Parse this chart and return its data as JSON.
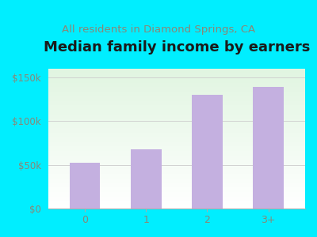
{
  "title": "Median family income by earners",
  "subtitle": "All residents in Diamond Springs, CA",
  "categories": [
    "0",
    "1",
    "2",
    "3+"
  ],
  "values": [
    52000,
    68000,
    130000,
    139000
  ],
  "bar_color": "#c4b0e0",
  "title_fontsize": 13,
  "subtitle_fontsize": 9.5,
  "subtitle_color": "#888878",
  "title_color": "#1a1a1a",
  "bg_outer_color": "#00eeff",
  "tick_color": "#888878",
  "ylim": [
    0,
    160000
  ],
  "yticks": [
    0,
    50000,
    100000,
    150000
  ],
  "ytick_labels": [
    "$0",
    "$50k",
    "$100k",
    "$150k"
  ]
}
